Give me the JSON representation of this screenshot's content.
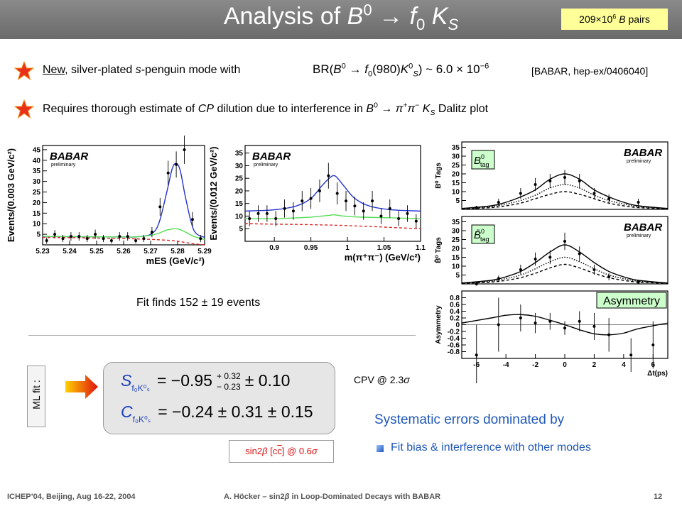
{
  "header": {
    "title": [
      "Analysis of ",
      "B",
      "0",
      " → ",
      "f",
      "0",
      " K",
      "S"
    ],
    "badge": [
      "209",
      "×",
      "10",
      "6",
      " B",
      " pairs"
    ]
  },
  "bullets": [
    {
      "parts": [
        "New",
        ", silver-plated ",
        "s",
        "-penguin mode with"
      ],
      "formula": [
        "BR(",
        "B",
        "0",
        " → ",
        "f",
        "0",
        "(980)",
        "K",
        "0",
        "S",
        ") ~ 6.0 × 10",
        "−6"
      ],
      "ref": "[BABAR, hep-ex/0406040]"
    },
    {
      "parts": [
        "Requires thorough estimate of ",
        "CP",
        " dilution due to interference in ",
        "B",
        "0",
        " → ",
        "π",
        "+",
        "π",
        "−",
        " K",
        "S",
        " Dalitz plot"
      ]
    }
  ],
  "plots": [
    {
      "xlim": [
        5.23,
        5.29
      ],
      "ylim": [
        0,
        47
      ],
      "xticks": [
        5.23,
        5.24,
        5.25,
        5.26,
        5.27,
        5.28,
        5.29
      ],
      "yticks": [
        5,
        10,
        15,
        20,
        25,
        30,
        35,
        40,
        45
      ],
      "ylabel": "Events/(0.003 GeV/c²)",
      "xlabel": "mES (GeV/c²)",
      "logo": "BABAR",
      "logo_note": "preliminary",
      "curves": [
        {
          "color": "#2233cc",
          "dash": "solid",
          "x": [
            5.23,
            5.24,
            5.25,
            5.26,
            5.265,
            5.27,
            5.273,
            5.276,
            5.278,
            5.2795,
            5.281,
            5.283,
            5.286,
            5.29
          ],
          "values": [
            4,
            3.9,
            3.8,
            3.7,
            3.8,
            5,
            10,
            25,
            36,
            38.5,
            35,
            22,
            7,
            3.5
          ]
        },
        {
          "color": "#55dd55",
          "dash": "solid",
          "x": [
            5.23,
            5.24,
            5.25,
            5.26,
            5.265,
            5.27,
            5.273,
            5.276,
            5.278,
            5.2795,
            5.281,
            5.283,
            5.286,
            5.29
          ],
          "values": [
            4,
            3.9,
            3.8,
            3.7,
            3.8,
            4.5,
            5.5,
            7,
            7.5,
            7.6,
            7.2,
            6,
            4,
            2.5
          ]
        },
        {
          "color": "#dd2222",
          "dash": "dashed",
          "x": [
            5.23,
            5.24,
            5.25,
            5.26,
            5.265,
            5.27,
            5.273,
            5.276,
            5.278,
            5.2795,
            5.281,
            5.283,
            5.286,
            5.29
          ],
          "values": [
            3.5,
            3.4,
            3.2,
            3,
            2.8,
            2.6,
            2.4,
            2.2,
            2,
            1.8,
            1.5,
            1.1,
            0.5,
            0
          ]
        }
      ],
      "points": {
        "x": [
          5.2315,
          5.2345,
          5.2375,
          5.2405,
          5.2435,
          5.2465,
          5.2495,
          5.2525,
          5.2555,
          5.2585,
          5.2615,
          5.2645,
          5.2675,
          5.2705,
          5.2735,
          5.2765,
          5.2795,
          5.2825,
          5.2855,
          5.2885
        ],
        "values": [
          2,
          5,
          3,
          4,
          4,
          3,
          5,
          3,
          2,
          4,
          4,
          2,
          3,
          6,
          18,
          34,
          38,
          45,
          12,
          3
        ],
        "errors": [
          1.5,
          2,
          1.7,
          2,
          2,
          1.7,
          2.2,
          1.7,
          1.4,
          2,
          2,
          1.4,
          1.7,
          2.4,
          4.2,
          5.8,
          6.2,
          6.7,
          3.5,
          1.7
        ]
      }
    },
    {
      "xlim": [
        0.86,
        1.1
      ],
      "ylim": [
        0,
        38
      ],
      "xticks": [
        0.9,
        0.95,
        1,
        1.05,
        1.1
      ],
      "yticks": [
        5,
        10,
        15,
        20,
        25,
        30,
        35
      ],
      "ylabel": "Events/(0.012 GeV/c²)",
      "xlabel": "m(π⁺π⁻) (GeV/c²)",
      "logo": "BABAR",
      "logo_note": "preliminary",
      "curves": [
        {
          "color": "#2233cc",
          "dash": "solid",
          "x": [
            0.86,
            0.9,
            0.93,
            0.95,
            0.965,
            0.975,
            0.98,
            0.985,
            0.995,
            1.01,
            1.03,
            1.06,
            1.1
          ],
          "values": [
            12,
            12.5,
            14,
            17,
            22,
            25,
            26,
            25.5,
            22,
            17,
            14,
            12.5,
            12
          ]
        },
        {
          "color": "#55dd55",
          "dash": "solid",
          "x": [
            0.86,
            0.9,
            0.93,
            0.95,
            0.965,
            0.975,
            0.98,
            0.985,
            0.995,
            1.01,
            1.03,
            1.06,
            1.1
          ],
          "values": [
            9,
            9,
            9.3,
            9.6,
            10,
            10.3,
            10.5,
            10.4,
            10,
            9.7,
            9.5,
            9.3,
            9
          ]
        },
        {
          "color": "#dd2222",
          "dash": "dashed",
          "x": [
            0.86,
            0.9,
            0.93,
            0.95,
            0.965,
            0.975,
            0.98,
            0.985,
            0.995,
            1.01,
            1.03,
            1.06,
            1.1
          ],
          "values": [
            7,
            6.8,
            6.7,
            6.6,
            6.5,
            6.45,
            6.4,
            6.35,
            6.3,
            6.1,
            5.9,
            5.5,
            5
          ]
        }
      ],
      "points": {
        "x": [
          0.866,
          0.878,
          0.89,
          0.902,
          0.914,
          0.926,
          0.938,
          0.95,
          0.962,
          0.974,
          0.986,
          0.998,
          1.01,
          1.022,
          1.034,
          1.046,
          1.058,
          1.07,
          1.082,
          1.094
        ],
        "values": [
          9,
          11,
          11,
          9,
          13,
          12,
          16,
          17,
          20,
          26,
          19,
          16,
          14,
          12,
          16,
          10,
          13,
          9,
          11,
          8
        ],
        "errors": [
          3,
          3.3,
          3.3,
          3,
          3.6,
          3.5,
          4,
          4.1,
          4.5,
          5.1,
          4.4,
          4,
          3.7,
          3.5,
          4,
          3.2,
          3.6,
          3,
          3.3,
          2.8
        ]
      }
    },
    {
      "xlim": [
        -7,
        7
      ],
      "ylim": [
        0,
        38
      ],
      "yticks": [
        5,
        10,
        15,
        20,
        25,
        30,
        35
      ],
      "ylabel": "B⁰ Tags",
      "logo": "BABAR",
      "logo_note": "preliminary",
      "tag": [
        "B",
        "0",
        "tag"
      ],
      "curves": [
        {
          "color": "#000000",
          "dash": "solid",
          "x": [
            -7,
            -5,
            -4,
            -3,
            -2,
            -1,
            0,
            1,
            2,
            3,
            4,
            5,
            7
          ],
          "values": [
            0.5,
            2,
            4,
            7,
            11,
            17,
            20,
            17,
            11,
            7,
            4,
            2,
            0.5
          ]
        },
        {
          "color": "#000000",
          "dash": "dotted",
          "x": [
            -7,
            -5,
            -4,
            -3,
            -2,
            -1,
            0,
            1,
            2,
            3,
            4,
            5,
            7
          ],
          "values": [
            0.4,
            1.5,
            3,
            5,
            8,
            12,
            14,
            12,
            8,
            5,
            3,
            1.5,
            0.4
          ]
        },
        {
          "color": "#000000",
          "dash": "dashed",
          "x": [
            -7,
            -5,
            -4,
            -3,
            -2,
            -1,
            0,
            1,
            2,
            3,
            4,
            5,
            7
          ],
          "values": [
            0.3,
            1,
            2,
            3.5,
            6,
            8.5,
            10,
            8.5,
            6,
            3.5,
            2,
            1,
            0.3
          ]
        }
      ],
      "points": {
        "x": [
          -6,
          -4.5,
          -3,
          -2,
          -1,
          0,
          1,
          2,
          3,
          5
        ],
        "values": [
          1,
          4,
          9,
          14,
          16,
          18,
          16,
          9,
          6,
          4
        ],
        "errors": [
          1,
          2,
          3,
          3.7,
          4,
          4.2,
          4,
          3,
          2.4,
          2
        ]
      }
    },
    {
      "xlim": [
        -7,
        7
      ],
      "ylim": [
        0,
        38
      ],
      "yticks": [
        5,
        10,
        15,
        20,
        25,
        30,
        35
      ],
      "ylabel": "B̄⁰ Tags",
      "logo": "BABAR",
      "logo_note": "preliminary",
      "tag": [
        "B̄",
        "0",
        "tag"
      ],
      "curves": [
        {
          "color": "#000000",
          "dash": "solid",
          "x": [
            -7,
            -5,
            -4,
            -3,
            -2,
            -1,
            0,
            1,
            2,
            3,
            4,
            5,
            7
          ],
          "values": [
            0.5,
            2,
            4,
            7,
            12,
            18,
            22,
            18,
            12,
            7,
            4,
            2,
            0.5
          ]
        },
        {
          "color": "#000000",
          "dash": "dotted",
          "x": [
            -7,
            -5,
            -4,
            -3,
            -2,
            -1,
            0,
            1,
            2,
            3,
            4,
            5,
            7
          ],
          "values": [
            0.4,
            1.5,
            3,
            5,
            8.5,
            12.5,
            15,
            12.5,
            8.5,
            5,
            3,
            1.5,
            0.4
          ]
        },
        {
          "color": "#000000",
          "dash": "dashed",
          "x": [
            -7,
            -5,
            -4,
            -3,
            -2,
            -1,
            0,
            1,
            2,
            3,
            4,
            5,
            7
          ],
          "values": [
            0.3,
            1,
            2,
            3.5,
            6,
            9,
            11,
            9,
            6,
            3.5,
            2,
            1,
            0.3
          ]
        }
      ],
      "points": {
        "x": [
          -6,
          -4.5,
          -3,
          -2,
          -1,
          0,
          1,
          2,
          3,
          5
        ],
        "values": [
          0,
          3,
          8,
          14,
          15,
          24,
          17,
          8,
          4,
          1
        ],
        "errors": [
          1,
          1.7,
          2.8,
          3.7,
          3.9,
          4.9,
          4.1,
          2.8,
          2,
          1
        ]
      }
    },
    {
      "xlim": [
        -7,
        7
      ],
      "ylim": [
        -1,
        1
      ],
      "xticks": [
        -6,
        -4,
        -2,
        0,
        2,
        4,
        6
      ],
      "yticks": [
        -0.8,
        -0.6,
        -0.4,
        -0.2,
        0,
        0.2,
        0.4,
        0.6,
        0.8
      ],
      "ylabel": "Asymmetry",
      "xlabel": "Δt(ps)",
      "tag": "Asymmetry",
      "zero_line": true,
      "curves": [
        {
          "color": "#000000",
          "dash": "solid",
          "x": [
            -7,
            -5,
            -4,
            -3,
            -2,
            -1,
            0,
            1,
            2,
            3,
            4,
            5,
            7
          ],
          "values": [
            0.05,
            0.2,
            0.28,
            0.3,
            0.25,
            0.13,
            0,
            -0.15,
            -0.27,
            -0.3,
            -0.25,
            -0.12,
            0.05
          ]
        }
      ],
      "points": {
        "x": [
          -6,
          -4.5,
          -3,
          -2,
          -1,
          0,
          1,
          2,
          3,
          4.5,
          6
        ],
        "values": [
          -0.9,
          0,
          0.2,
          0.05,
          0.1,
          -0.1,
          0.1,
          -0.05,
          -0.3,
          -0.9,
          -0.6
        ],
        "errors": [
          0.9,
          0.8,
          0.4,
          0.3,
          0.25,
          0.2,
          0.3,
          0.4,
          0.5,
          0.5,
          0.7
        ]
      }
    }
  ],
  "fit_summary": "Fit finds 152 ± 19 events",
  "ml_fit": "ML fit :",
  "results": [
    {
      "symbol": "S",
      "sub": "f₀K⁰ₛ",
      "value": "= −0.95",
      "err_up": "+ 0.32",
      "err_down": "− 0.23",
      "syst": "± 0.10"
    },
    {
      "symbol": "C",
      "sub": "f₀K⁰ₛ",
      "value": "= −0.24 ± 0.31 ± 0.15"
    }
  ],
  "sm_deviation": [
    "sin2",
    "β",
    " [c",
    "c",
    "] @ 0.6",
    "σ"
  ],
  "cpv": [
    "CPV @ 2.3",
    "σ"
  ],
  "systematics": {
    "title": "Systematic errors dominated by",
    "items": [
      "Fit bias & interference with other modes"
    ]
  },
  "footer": {
    "left": "ICHEP’04, Beijing, Aug 16-22, 2004",
    "center": [
      "A. Höcker – sin2",
      "β",
      " in Loop-Dominated Decays with BABAR"
    ],
    "page": "12"
  }
}
